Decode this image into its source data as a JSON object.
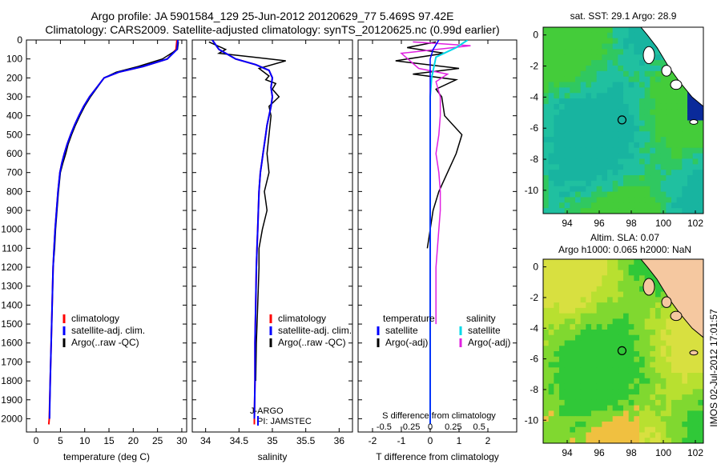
{
  "title": {
    "line1": "Argo profile: JA 5901584_129 25-Jun-2012 20120629_77 5.469S 97.42E",
    "line2": "Climatology: CARS2009. Satellite-adjusted climatology: synTS_20120625.nc (0.99d earlier)"
  },
  "colors": {
    "climatology": "#ff0000",
    "satellite": "#0000ff",
    "argo": "#000000",
    "salinity_sat": "#00d8e8",
    "salinity_argo": "#e020e0"
  },
  "chart_data": [
    {
      "type": "line",
      "xlabel": "temperature (deg C)",
      "xlim": [
        -2,
        31
      ],
      "xticks": [
        0,
        5,
        10,
        15,
        20,
        25,
        30
      ],
      "ylim": [
        2070,
        0
      ],
      "yticks": [
        0,
        100,
        200,
        300,
        400,
        500,
        600,
        700,
        800,
        900,
        1000,
        1100,
        1200,
        1300,
        1400,
        1500,
        1600,
        1700,
        1800,
        1900,
        2000
      ],
      "legend": [
        "climatology",
        "satellite-adj. clim.",
        "Argo(..raw -QC)"
      ],
      "series": [
        {
          "name": "climatology",
          "x": [
            29.0,
            28.8,
            27,
            22,
            17,
            14,
            12.5,
            11,
            9.8,
            8.8,
            7.9,
            7.1,
            6.4,
            5.8,
            5.3,
            4.9,
            4.5,
            4.2,
            3.9,
            3.7,
            3.5,
            3.3,
            3.1,
            2.9,
            2.7,
            2.6
          ],
          "y": [
            0,
            50,
            100,
            140,
            170,
            200,
            250,
            300,
            350,
            400,
            450,
            500,
            550,
            600,
            650,
            700,
            800,
            900,
            1000,
            1100,
            1200,
            1400,
            1600,
            1800,
            2000,
            2030
          ]
        },
        {
          "name": "satellite-adj. clim.",
          "x": [
            29.2,
            29.0,
            27,
            22,
            17,
            14,
            12.5,
            11,
            9.8,
            8.8,
            7.9,
            7.1,
            6.4,
            5.8,
            5.3,
            4.9,
            4.5,
            4.2,
            3.9,
            3.7,
            3.5,
            3.3,
            3.1,
            2.9,
            2.75
          ],
          "y": [
            0,
            50,
            100,
            140,
            170,
            200,
            250,
            300,
            350,
            400,
            450,
            500,
            550,
            600,
            650,
            700,
            800,
            900,
            1000,
            1100,
            1200,
            1400,
            1600,
            1800,
            2000
          ]
        },
        {
          "name": "Argo(..raw -QC)",
          "x": [
            29.3,
            29.1,
            26,
            21,
            16.5,
            14,
            12.6,
            11.2,
            10,
            9,
            8.1,
            7.3,
            6.6,
            6.1,
            5.5,
            5.0,
            4.6,
            4.3,
            4.0,
            3.8,
            3.5,
            3.3,
            3.1,
            2.9,
            2.75
          ],
          "y": [
            10,
            50,
            100,
            140,
            170,
            200,
            250,
            300,
            350,
            400,
            450,
            500,
            550,
            600,
            650,
            700,
            800,
            900,
            1000,
            1100,
            1200,
            1400,
            1600,
            1800,
            2000
          ]
        }
      ],
      "annotations": []
    },
    {
      "type": "line",
      "xlabel": "salinity",
      "xlim": [
        33.8,
        36.2
      ],
      "xticks": [
        34,
        34.5,
        35,
        35.5,
        36
      ],
      "ylim": [
        2070,
        0
      ],
      "legend": [
        "climatology",
        "satellite-adj. clim.",
        "Argo(..raw -QC)"
      ],
      "series": [
        {
          "name": "climatology",
          "x": [
            34.1,
            34.2,
            34.45,
            34.75,
            34.95,
            35.0,
            34.98,
            35.0,
            34.98,
            34.95,
            34.92,
            34.9,
            34.88,
            34.86,
            34.84,
            34.82,
            34.8,
            34.79,
            34.78,
            34.77,
            34.76,
            34.75,
            34.74,
            34.74,
            34.73,
            34.73
          ],
          "y": [
            0,
            50,
            100,
            130,
            160,
            200,
            250,
            300,
            350,
            400,
            450,
            500,
            550,
            600,
            650,
            700,
            800,
            900,
            1000,
            1100,
            1200,
            1400,
            1600,
            1800,
            2000,
            2030
          ]
        },
        {
          "name": "satellite-adj. clim.",
          "x": [
            34.1,
            34.2,
            34.45,
            34.75,
            34.95,
            35.0,
            34.98,
            35.0,
            34.98,
            34.95,
            34.92,
            34.9,
            34.88,
            34.86,
            34.84,
            34.82,
            34.8,
            34.79,
            34.78,
            34.77,
            34.76,
            34.75,
            34.74,
            34.74,
            34.73
          ],
          "y": [
            0,
            50,
            100,
            130,
            160,
            200,
            250,
            300,
            350,
            400,
            450,
            500,
            550,
            600,
            650,
            700,
            800,
            900,
            1000,
            1100,
            1200,
            1400,
            1600,
            1800,
            2000
          ]
        },
        {
          "name": "Argo(..raw -QC)",
          "x": [
            34.05,
            34.3,
            34.2,
            34.7,
            35.2,
            34.8,
            34.95,
            34.9,
            35.05,
            35.0,
            35.1,
            34.95,
            34.98,
            34.95,
            34.92,
            34.95,
            34.88,
            34.9,
            34.92,
            34.85,
            34.8,
            34.8,
            34.78,
            34.76,
            34.75
          ],
          "y": [
            10,
            50,
            70,
            90,
            110,
            150,
            190,
            210,
            230,
            260,
            300,
            350,
            400,
            500,
            600,
            700,
            800,
            850,
            900,
            1000,
            1100,
            1200,
            1400,
            1600,
            1800
          ]
        }
      ],
      "annotations": [
        "J-ARGO",
        "PI: JAMSTEC"
      ]
    },
    {
      "type": "line",
      "xlabel": "T difference from climatology",
      "xlabel_top": "S difference from climatology",
      "xlim": [
        -2.5,
        3
      ],
      "xticks": [
        -2,
        -1,
        0,
        1,
        2
      ],
      "xticks_top": [
        "-0.5",
        "-0.25",
        "0",
        "0.25",
        "0.5"
      ],
      "ylim": [
        2070,
        0
      ],
      "legend_left": {
        "title": "temperature",
        "items": [
          "satellite",
          "Argo(-adj)"
        ]
      },
      "legend_right": {
        "title": "salinity",
        "items": [
          "satellite",
          "Argo(-adj)"
        ]
      },
      "series": [
        {
          "name": "temperature satellite",
          "x": [
            0.3,
            0.1,
            0,
            0,
            0,
            0,
            0,
            0,
            0,
            0,
            0,
            0,
            0,
            0
          ],
          "y": [
            0,
            50,
            100,
            200,
            300,
            500,
            700,
            900,
            1100,
            1300,
            1500,
            1700,
            1900,
            2030
          ]
        },
        {
          "name": "temperature Argo(-adj)",
          "x": [
            0.2,
            -0.8,
            0.5,
            -1.2,
            1.0,
            -0.6,
            0.9,
            0.2,
            0.4,
            0.5,
            1.1,
            0.9,
            0.6,
            0.3,
            0.1,
            0.0,
            -0.1
          ],
          "y": [
            10,
            40,
            70,
            110,
            150,
            180,
            210,
            260,
            300,
            400,
            500,
            600,
            700,
            800,
            900,
            1000,
            1100
          ]
        },
        {
          "name": "salinity satellite",
          "x": [
            1.3,
            0.9,
            0.2,
            0.05,
            0,
            0,
            0,
            0,
            0,
            0,
            0,
            0,
            0,
            0
          ],
          "y": [
            0,
            40,
            90,
            200,
            300,
            500,
            700,
            900,
            1100,
            1300,
            1500,
            1700,
            1900,
            2030
          ]
        },
        {
          "name": "salinity Argo(-adj)",
          "x": [
            -0.6,
            1.4,
            -1.0,
            -0.4,
            0.6,
            0.2,
            0.35,
            0.35,
            0.3,
            0.2,
            0.3,
            0.35,
            0.35,
            0.3,
            0.25,
            0.2,
            0.2,
            0.2
          ],
          "y": [
            10,
            30,
            70,
            150,
            180,
            220,
            300,
            400,
            500,
            600,
            700,
            800,
            900,
            1000,
            1100,
            1200,
            1400,
            1500
          ]
        }
      ],
      "annotations": []
    },
    {
      "type": "heatmap",
      "title": "sat. SST: 29.1  Argo: 28.9",
      "xlim": [
        92.5,
        102.5
      ],
      "ylim": [
        -11.5,
        0.5
      ],
      "xticks": [
        94,
        96,
        98,
        100,
        102
      ],
      "yticks": [
        0,
        -2,
        -4,
        -6,
        -8,
        -10
      ],
      "marker": {
        "lon": 97.42,
        "lat": -5.469
      }
    },
    {
      "type": "heatmap",
      "title_line1": "Altim. SLA: 0.07",
      "title_line2": "Argo h1000: 0.065 h2000: NaN",
      "xlim": [
        92.5,
        102.5
      ],
      "ylim": [
        -11.5,
        0.5
      ],
      "xticks": [
        94,
        96,
        98,
        100,
        102
      ],
      "yticks": [
        0,
        -2,
        -4,
        -6,
        -8,
        -10
      ],
      "marker": {
        "lon": 97.42,
        "lat": -5.469
      }
    }
  ],
  "sidelabel": "IMOS 02-Jul-2012 17:01:57"
}
